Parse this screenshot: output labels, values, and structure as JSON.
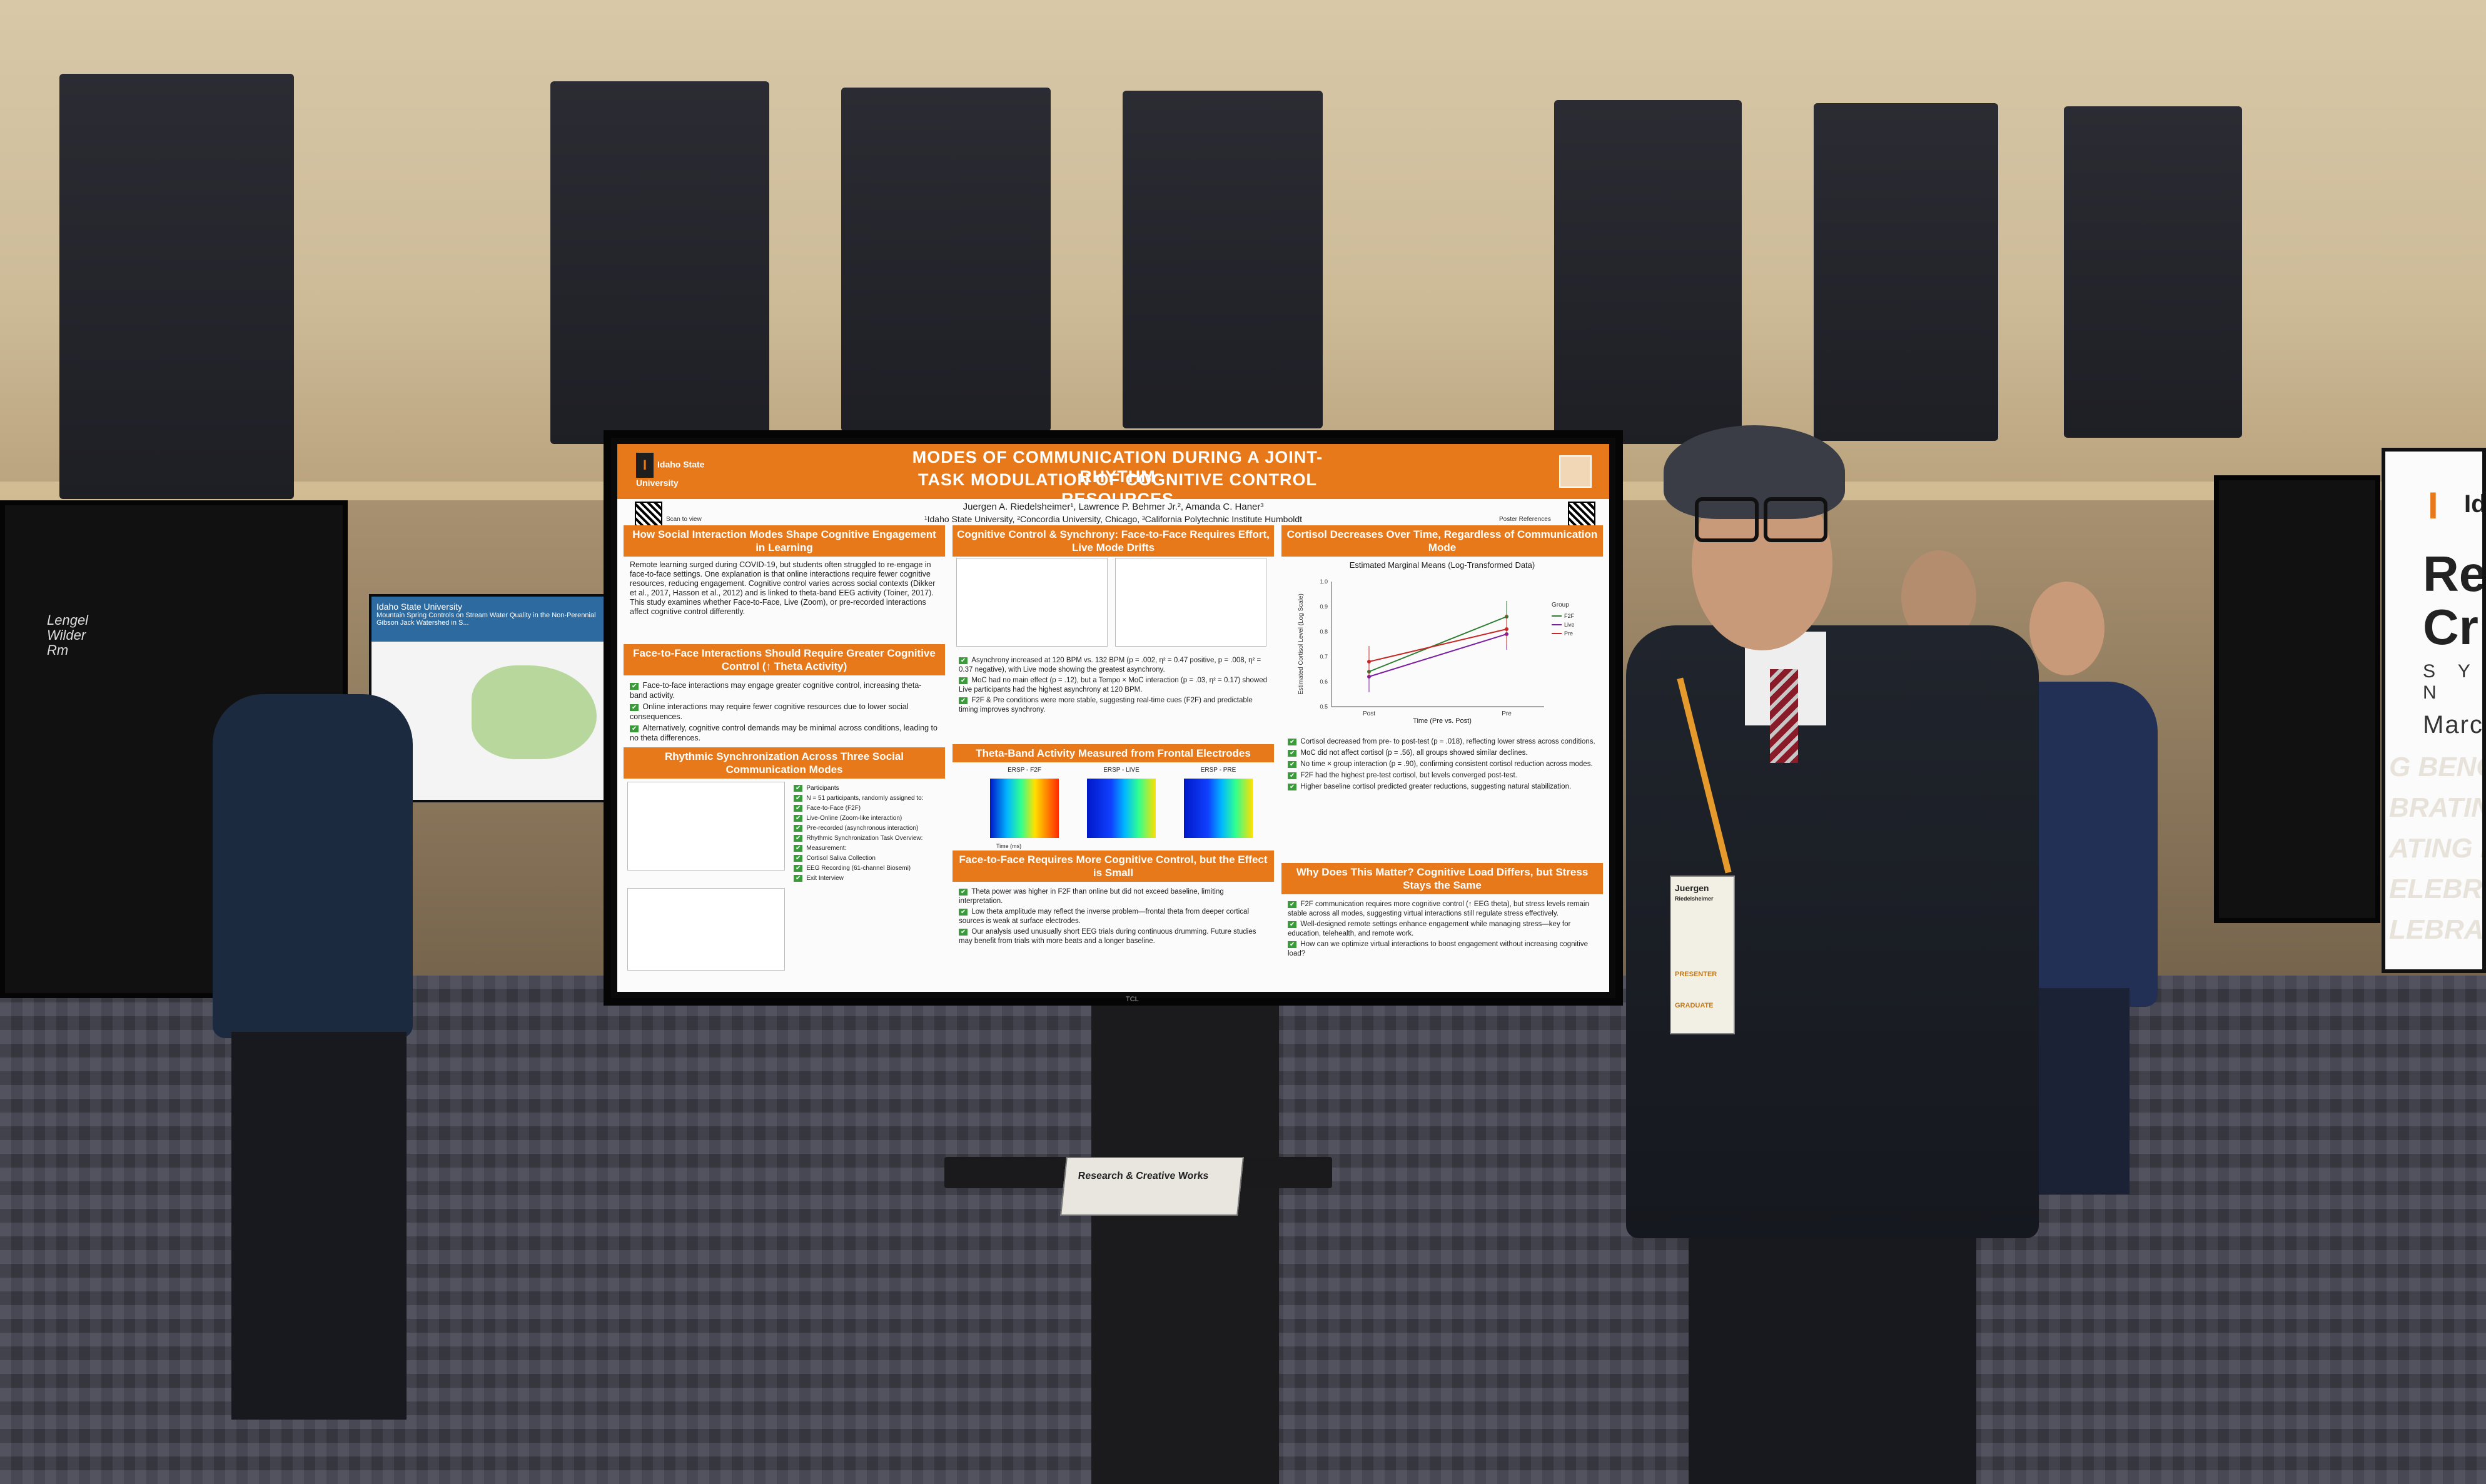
{
  "scene": "Poster presentation at an academic symposium: a presenter stands next to a large monitor displaying a research poster.",
  "poster": {
    "institution_logo": "Idaho State University",
    "title_line1": "MODES OF COMMUNICATION DURING A JOINT-RHYTHM",
    "title_line2": "TASK MODULATION OF COGNITIVE CONTROL RESOURCES",
    "authors": "Juergen A. Riedelsheimer¹, Lawrence P. Behmer Jr.², Amanda C. Haner³",
    "affiliations": "¹Idaho State University, ²Concordia University, Chicago, ³California Polytechnic Institute Humboldt",
    "qr_left_label": "Scan to view",
    "qr_right_label": "Poster References",
    "sections": {
      "intro": {
        "heading": "How Social Interaction Modes Shape Cognitive Engagement in Learning",
        "body": "Remote learning surged during COVID-19, but students often struggled to re-engage in face-to-face settings. One explanation is that online interactions require fewer cognitive resources, reducing engagement. Cognitive control varies across social contexts (Dikker et al., 2017, Hasson et al., 2012) and is linked to theta-band EEG activity (Toiner, 2017). This study examines whether Face-to-Face, Live (Zoom), or pre-recorded interactions affect cognitive control differently."
      },
      "hypothesis": {
        "heading": "Face-to-Face Interactions Should Require Greater Cognitive Control (↑ Theta Activity)",
        "items": [
          "Face-to-face interactions may engage greater cognitive control, increasing theta-band activity.",
          "Online interactions may require fewer cognitive resources due to lower social consequences.",
          "Alternatively, cognitive control demands may be minimal across conditions, leading to no theta differences."
        ]
      },
      "methods": {
        "heading": "Rhythmic Synchronization Across Three Social Communication Modes",
        "items": [
          "Participants",
          "N = 51 participants, randomly assigned to:",
          "Face-to-Face (F2F)",
          "Live-Online (Zoom-like interaction)",
          "Pre-recorded (asynchronous interaction)",
          "Rhythmic Synchronization Task Overview:",
          "Measurement:",
          "Cortisol Saliva Collection",
          "EEG Recording (61-channel Biosemi)",
          "Exit Interview"
        ]
      },
      "sync": {
        "heading": "Cognitive Control & Synchrony: Face-to-Face Requires Effort, Live Mode Drifts",
        "items": [
          "Asynchrony increased at 120 BPM vs. 132 BPM (p = .002, η² = 0.47 positive, p = .008, η² = 0.37 negative), with Live mode showing the greatest asynchrony.",
          "MoC had no main effect (p = .12), but a Tempo × MoC interaction (p = .03, η² = 0.17) showed Live participants had the highest asynchrony at 120 BPM.",
          "F2F & Pre conditions were more stable, suggesting real-time cues (F2F) and predictable timing improves synchrony."
        ]
      },
      "theta": {
        "heading": "Theta-Band Activity Measured from Frontal Electrodes",
        "panels": [
          "ERSP - F2F",
          "ERSP - LIVE",
          "ERSP - PRE"
        ],
        "x_label": "Time (ms)",
        "y_label": "Frequency (Hz)"
      },
      "theta_result": {
        "heading": "Face-to-Face Requires More Cognitive Control, but the Effect is Small",
        "items": [
          "Theta power was higher in F2F than online but did not exceed baseline, limiting interpretation.",
          "Low theta amplitude may reflect the inverse problem—frontal theta from deeper cortical sources is weak at surface electrodes.",
          "Our analysis used unusually short EEG trials during continuous drumming. Future studies may benefit from trials with more beats and a longer baseline."
        ]
      },
      "cortisol": {
        "heading": "Cortisol Decreases Over Time, Regardless of Communication Mode",
        "chart_title": "Estimated Marginal Means (Log-Transformed Data)",
        "y_label": "Estimated Cortisol Level (Log Scale)",
        "x_label": "Time (Pre vs. Post)",
        "legend_title": "Group",
        "legend": [
          "F2F",
          "Live",
          "Pre"
        ],
        "items": [
          "Cortisol decreased from pre- to post-test (p = .018), reflecting lower stress across conditions.",
          "MoC did not affect cortisol (p = .56), all groups showed similar declines.",
          "No time × group interaction (p = .90), confirming consistent cortisol reduction across modes.",
          "F2F had the highest pre-test cortisol, but levels converged post-test.",
          "Higher baseline cortisol predicted greater reductions, suggesting natural stabilization."
        ]
      },
      "conclusion": {
        "heading": "Why Does This Matter? Cognitive Load Differs, but Stress Stays the Same",
        "items": [
          "F2F communication requires more cognitive control (↑ EEG theta), but stress levels remain stable across all modes, suggesting virtual interactions still regulate stress effectively.",
          "Well-designed remote settings enhance engagement while managing stress—key for education, telehealth, and remote work.",
          "How can we optimize virtual interactions to boost engagement without increasing cognitive load?"
        ]
      }
    }
  },
  "monitor_brand": "TCL",
  "left_poster": {
    "institution": "Idaho State University",
    "title": "Mountain Spring Controls on Stream Water Quality in the Non-Perennial Gibson Jack Watershed in S..."
  },
  "left_handwriting": [
    "Lengel",
    "Wilder",
    "Rm"
  ],
  "right_banner": {
    "ida": "Ida",
    "big_lines": [
      "Re",
      "Cr"
    ],
    "spaced": "S Y N",
    "date": "March",
    "faint_lines": [
      "G BENGAL D",
      "BRATING BENGA",
      "ATING BE",
      "ELEBRATING",
      "LEBRATING"
    ]
  },
  "booklet_text": "Research & Creative Works",
  "presenter_badge": [
    "Juergen",
    "Riedelsheimer",
    "PRESENTER",
    "GRADUATE"
  ],
  "colors": {
    "poster_orange": "#e8791a",
    "check_green": "#3b9b3b",
    "lanyard": "#e79a2c"
  },
  "cortisol_chart_data": {
    "type": "line",
    "x": [
      "Post",
      "Pre"
    ],
    "series": [
      {
        "name": "F2F",
        "values": [
          0.64,
          0.86
        ]
      },
      {
        "name": "Live",
        "values": [
          0.62,
          0.79
        ]
      },
      {
        "name": "Pre",
        "values": [
          0.68,
          0.81
        ]
      }
    ],
    "ylim": [
      0.5,
      1.0
    ]
  }
}
